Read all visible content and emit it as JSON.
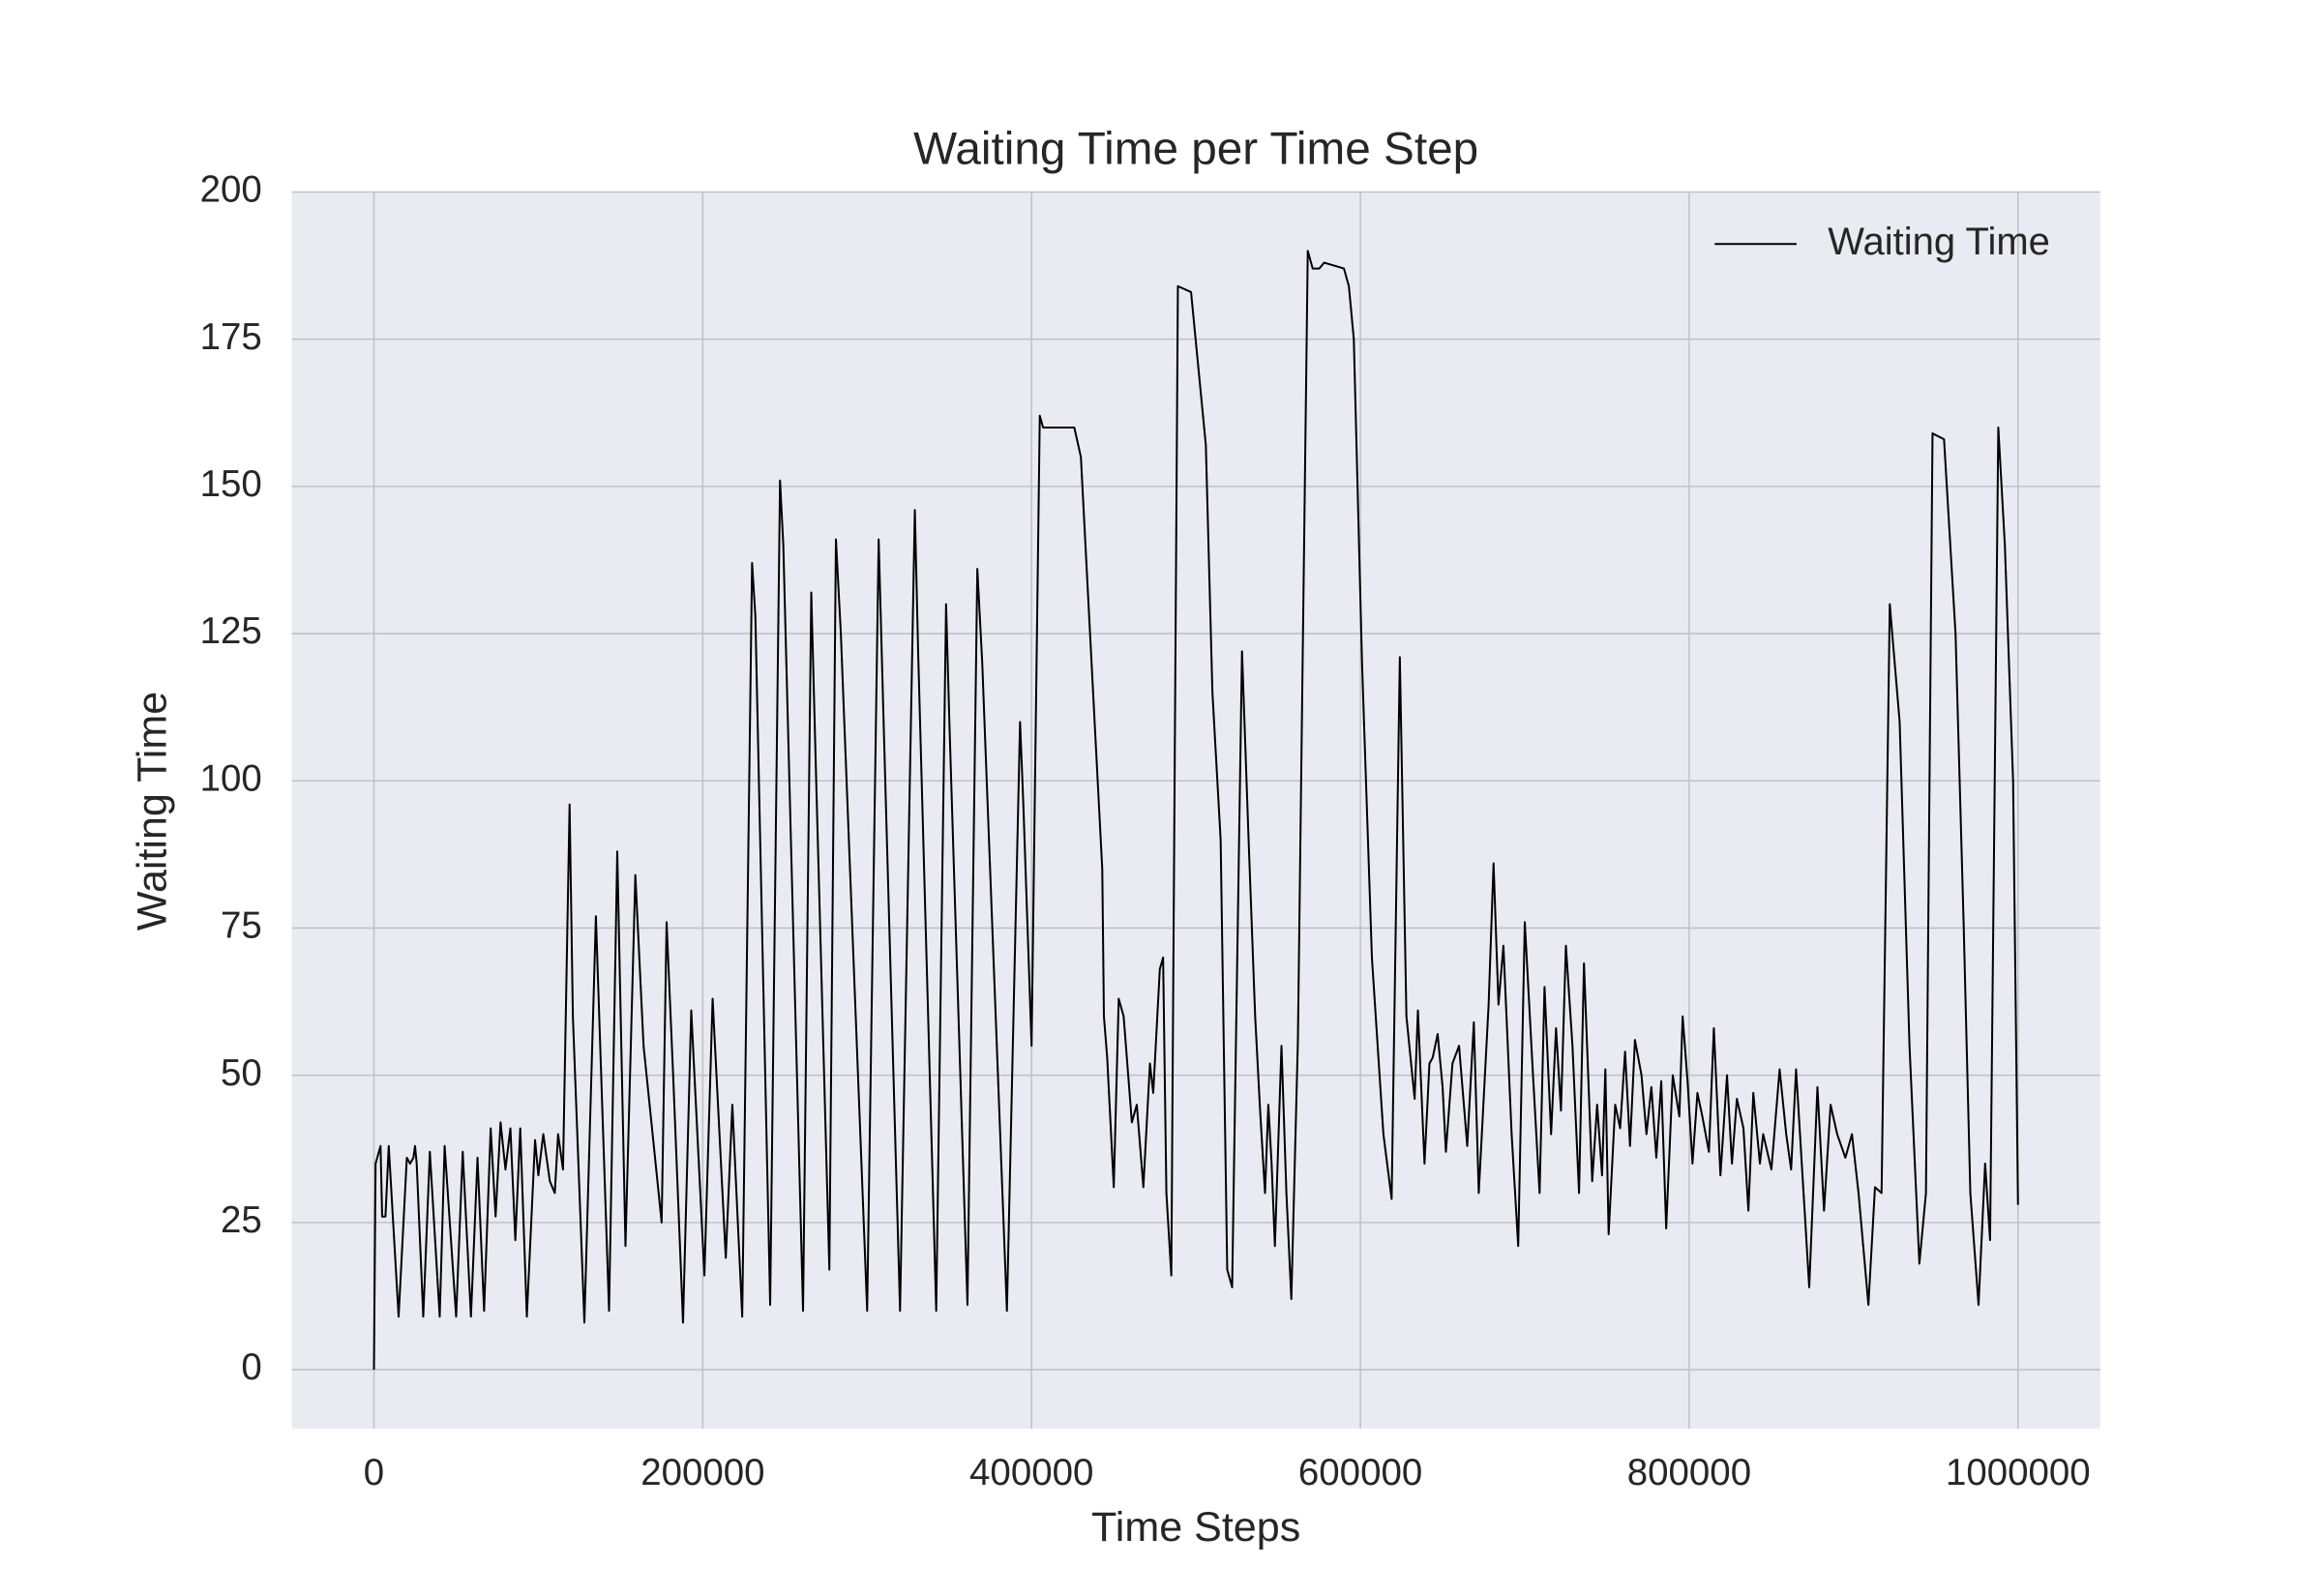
{
  "chart_data": {
    "type": "line",
    "title": "Waiting Time per Time Step",
    "xlabel": "Time Steps",
    "ylabel": "Waiting Time",
    "xlim": [
      -50000,
      1050000
    ],
    "ylim": [
      -10,
      200
    ],
    "xticks": [
      0,
      200000,
      400000,
      600000,
      800000,
      1000000
    ],
    "yticks": [
      0,
      25,
      50,
      75,
      100,
      125,
      150,
      175,
      200
    ],
    "grid": true,
    "legend": "upper right",
    "x": [
      0,
      1000,
      4000,
      5000,
      7000,
      9000,
      15000,
      20000,
      22000,
      24000,
      25000,
      26000,
      30000,
      34000,
      40000,
      43000,
      50000,
      54000,
      59000,
      63000,
      67000,
      71000,
      74000,
      77000,
      80000,
      83000,
      86000,
      89000,
      93000,
      98000,
      100000,
      103000,
      107000,
      110000,
      112000,
      115000,
      119000,
      121000,
      128000,
      135000,
      143000,
      148000,
      153000,
      159000,
      164000,
      175000,
      178000,
      182000,
      188000,
      193000,
      201000,
      206000,
      214000,
      218000,
      224000,
      230000,
      232000,
      241000,
      247000,
      249000,
      261000,
      266000,
      269000,
      277000,
      281000,
      284000,
      300000,
      307000,
      310000,
      320000,
      329000,
      331000,
      342000,
      348000,
      350000,
      361000,
      367000,
      370000,
      385000,
      393000,
      395000,
      400000,
      405000,
      407000,
      426000,
      430000,
      443000,
      444000,
      446000,
      450000,
      453000,
      456000,
      461000,
      464000,
      468000,
      472000,
      474000,
      478000,
      480000,
      482000,
      485000,
      489000,
      497000,
      506000,
      510000,
      515000,
      519000,
      522000,
      528000,
      532000,
      536000,
      539000,
      542000,
      544000,
      546000,
      548000,
      552000,
      555000,
      558000,
      562000,
      568000,
      571000,
      575000,
      578000,
      590000,
      593000,
      596000,
      601000,
      607000,
      614000,
      619000,
      624000,
      628000,
      633000,
      635000,
      639000,
      642000,
      644000,
      647000,
      650000,
      652000,
      656000,
      660000,
      665000,
      669000,
      672000,
      678000,
      681000,
      684000,
      687000,
      692000,
      696000,
      700000,
      705000,
      709000,
      712000,
      716000,
      719000,
      722000,
      725000,
      729000,
      733000,
      736000,
      741000,
      744000,
      747000,
      749000,
      751000,
      755000,
      758000,
      761000,
      764000,
      767000,
      771000,
      774000,
      777000,
      780000,
      783000,
      786000,
      790000,
      794000,
      796000,
      799000,
      802000,
      805000,
      808000,
      812000,
      815000,
      819000,
      823000,
      826000,
      829000,
      833000,
      836000,
      839000,
      843000,
      845000,
      850000,
      855000,
      859000,
      862000,
      865000,
      870000,
      873000,
      878000,
      882000,
      886000,
      890000,
      895000,
      899000,
      903000,
      909000,
      913000,
      917000,
      922000,
      928000,
      934000,
      940000,
      944000,
      948000,
      955000,
      962000,
      967000,
      971000,
      976000,
      980000,
      983000,
      988000,
      992000,
      997000,
      1000000
    ],
    "series": [
      {
        "name": "Waiting Time",
        "color": "#000000",
        "values": [
          0,
          35,
          38,
          26,
          26,
          38,
          9,
          36,
          35,
          36,
          38,
          35,
          9,
          37,
          9,
          38,
          9,
          37,
          9,
          36,
          10,
          41,
          26,
          42,
          34,
          41,
          22,
          41,
          9,
          39,
          33,
          40,
          32,
          30,
          40,
          34,
          96,
          60,
          8,
          77,
          10,
          88,
          21,
          84,
          55,
          25,
          76,
          50,
          8,
          61,
          16,
          63,
          19,
          45,
          9,
          137,
          128,
          11,
          151,
          140,
          10,
          132,
          100,
          17,
          141,
          125,
          10,
          141,
          110,
          10,
          146,
          122,
          10,
          130,
          110,
          11,
          136,
          120,
          10,
          110,
          96,
          55,
          162,
          160,
          160,
          155,
          85,
          60,
          53,
          31,
          63,
          60,
          42,
          45,
          31,
          52,
          47,
          68,
          70,
          30,
          16,
          184,
          183,
          157,
          115,
          90,
          17,
          14,
          122,
          90,
          60,
          44,
          30,
          45,
          35,
          21,
          55,
          30,
          12,
          56,
          190,
          187,
          187,
          188,
          187,
          184,
          175,
          120,
          70,
          40,
          29,
          121,
          60,
          46,
          61,
          35,
          52,
          53,
          57,
          48,
          37,
          52,
          55,
          38,
          59,
          30,
          62,
          86,
          62,
          72,
          40,
          21,
          76,
          50,
          30,
          65,
          40,
          58,
          44,
          72,
          55,
          30,
          69,
          32,
          45,
          33,
          51,
          23,
          45,
          41,
          54,
          38,
          56,
          50,
          40,
          48,
          36,
          49,
          24,
          50,
          43,
          60,
          49,
          35,
          47,
          43,
          37,
          58,
          33,
          50,
          35,
          46,
          41,
          27,
          47,
          35,
          40,
          34,
          51,
          40,
          34,
          51,
          28,
          14,
          48,
          27,
          45,
          40,
          36,
          40,
          30,
          11,
          31,
          30,
          130,
          110,
          55,
          18,
          30,
          159,
          158,
          125,
          75,
          30,
          11,
          35,
          22,
          160,
          140,
          100,
          28
        ]
      }
    ]
  }
}
